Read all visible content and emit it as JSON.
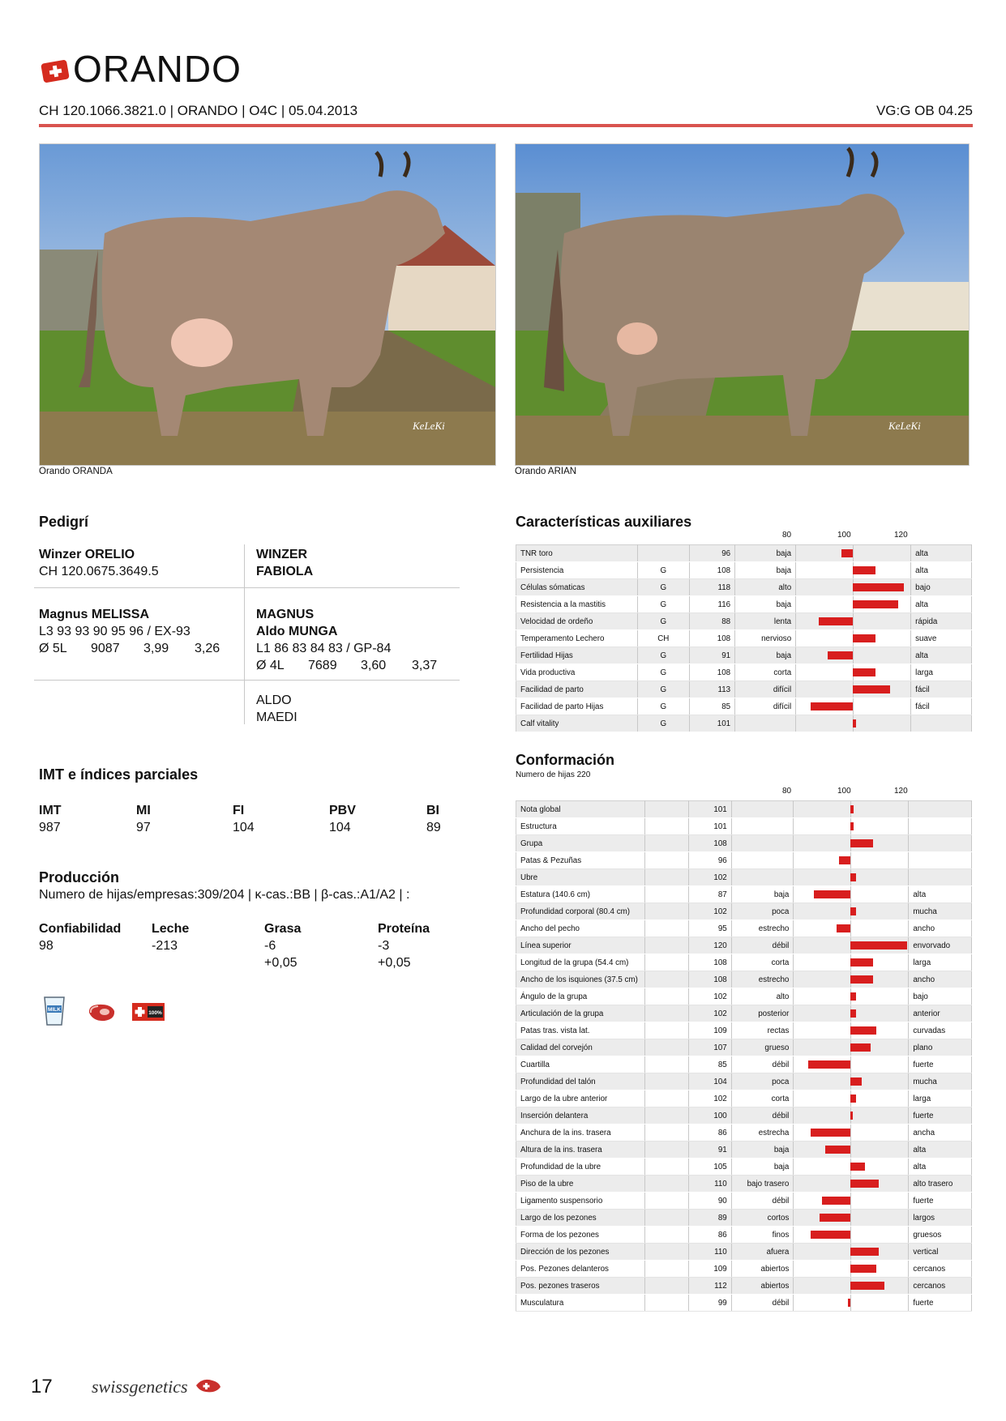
{
  "header": {
    "title": "ORANDO",
    "subline": "CH 120.1066.3821.0 | ORANDO | O4C | 05.04.2013",
    "vg": "VG:G OB 04.25"
  },
  "photos": {
    "left_caption": "Orando ORANDA",
    "right_caption": "Orando ARIAN",
    "watermark": "KeLeKi"
  },
  "pedigree": {
    "heading": "Pedigrí",
    "sire_name": "Winzer ORELIO",
    "sire_id": "CH 120.0675.3649.5",
    "sire_sire": "WINZER",
    "sire_dam": "FABIOLA",
    "dam_name": "Magnus MELISSA",
    "dam_line": "L3 93 93 90 95 96 / EX-93",
    "dam_perf": [
      "Ø 5L",
      "9087",
      "3,99",
      "3,26"
    ],
    "mgs_name": "MAGNUS",
    "mgd_name": "Aldo MUNGA",
    "mgd_line": "L1 86 83 84 83 / GP-84",
    "mgd_perf": [
      "Ø 4L",
      "7689",
      "3,60",
      "3,37"
    ],
    "mgd_sire": "ALDO",
    "mgd_dam": "MAEDI"
  },
  "imt": {
    "heading": "IMT e índices parciales",
    "labels": [
      "IMT",
      "MI",
      "FI",
      "PBV",
      "BI"
    ],
    "values": [
      "987",
      "97",
      "104",
      "104",
      "89"
    ]
  },
  "production": {
    "heading": "Producción",
    "line": "Numero de hijas/empresas:309/204 | κ-cas.:BB | β-cas.:A1/A2 | :",
    "labels": [
      "Confiabilidad",
      "Leche",
      "Grasa",
      "Proteína"
    ],
    "values": [
      "98",
      "-213",
      "-6",
      "-3"
    ],
    "extra": [
      "",
      "",
      "+0,05",
      "+0,05"
    ]
  },
  "icons": {
    "milk_label": "MILK",
    "swiss_label": "100%"
  },
  "aux": {
    "heading": "Características auxiliares",
    "scale": [
      "80",
      "100",
      "120"
    ],
    "rows": [
      {
        "name": "TNR toro",
        "src": "",
        "value": 96,
        "low": "baja",
        "high": "alta"
      },
      {
        "name": "Persistencia",
        "src": "G",
        "value": 108,
        "low": "baja",
        "high": "alta"
      },
      {
        "name": "Células sómaticas",
        "src": "G",
        "value": 118,
        "low": "alto",
        "high": "bajo"
      },
      {
        "name": "Resistencia a la mastitis",
        "src": "G",
        "value": 116,
        "low": "baja",
        "high": "alta"
      },
      {
        "name": "Velocidad de ordeño",
        "src": "G",
        "value": 88,
        "low": "lenta",
        "high": "rápida"
      },
      {
        "name": "Temperamento Lechero",
        "src": "CH",
        "value": 108,
        "low": "nervioso",
        "high": "suave"
      },
      {
        "name": "Fertilidad Hijas",
        "src": "G",
        "value": 91,
        "low": "baja",
        "high": "alta"
      },
      {
        "name": "Vida productiva",
        "src": "G",
        "value": 108,
        "low": "corta",
        "high": "larga"
      },
      {
        "name": "Facilidad de parto",
        "src": "G",
        "value": 113,
        "low": "difícil",
        "high": "fácil"
      },
      {
        "name": "Facilidad de parto Hijas",
        "src": "G",
        "value": 85,
        "low": "difícil",
        "high": "fácil"
      },
      {
        "name": "Calf vitality",
        "src": "G",
        "value": 101,
        "low": "",
        "high": ""
      }
    ]
  },
  "conf": {
    "heading": "Conformación",
    "subheading": "Numero de hijas 220",
    "scale": [
      "80",
      "100",
      "120"
    ],
    "rows": [
      {
        "name": "Nota global",
        "value": 101,
        "low": "",
        "high": ""
      },
      {
        "name": "Estructura",
        "value": 101,
        "low": "",
        "high": ""
      },
      {
        "name": "Grupa",
        "value": 108,
        "low": "",
        "high": ""
      },
      {
        "name": "Patas & Pezuñas",
        "value": 96,
        "low": "",
        "high": ""
      },
      {
        "name": "Ubre",
        "value": 102,
        "low": "",
        "high": ""
      },
      {
        "name": "Estatura (140.6 cm)",
        "value": 87,
        "low": "baja",
        "high": "alta"
      },
      {
        "name": "Profundidad corporal (80.4 cm)",
        "value": 102,
        "low": "poca",
        "high": "mucha"
      },
      {
        "name": "Ancho del pecho",
        "value": 95,
        "low": "estrecho",
        "high": "ancho"
      },
      {
        "name": "Línea superior",
        "value": 120,
        "low": "débil",
        "high": "envorvado"
      },
      {
        "name": "Longitud de la grupa (54.4 cm)",
        "value": 108,
        "low": "corta",
        "high": "larga"
      },
      {
        "name": "Ancho de los isquiones (37.5 cm)",
        "value": 108,
        "low": "estrecho",
        "high": "ancho"
      },
      {
        "name": "Ángulo de la grupa",
        "value": 102,
        "low": "alto",
        "high": "bajo"
      },
      {
        "name": "Articulación de la grupa",
        "value": 102,
        "low": "posterior",
        "high": "anterior"
      },
      {
        "name": "Patas tras. vista lat.",
        "value": 109,
        "low": "rectas",
        "high": "curvadas"
      },
      {
        "name": "Calidad del corvejón",
        "value": 107,
        "low": "grueso",
        "high": "plano"
      },
      {
        "name": "Cuartilla",
        "value": 85,
        "low": "débil",
        "high": "fuerte"
      },
      {
        "name": "Profundidad del talón",
        "value": 104,
        "low": "poca",
        "high": "mucha"
      },
      {
        "name": "Largo de la ubre anterior",
        "value": 102,
        "low": "corta",
        "high": "larga"
      },
      {
        "name": "Inserción delantera",
        "value": 100,
        "low": "débil",
        "high": "fuerte"
      },
      {
        "name": "Anchura de la ins. trasera",
        "value": 86,
        "low": "estrecha",
        "high": "ancha"
      },
      {
        "name": "Altura de la ins. trasera",
        "value": 91,
        "low": "baja",
        "high": "alta"
      },
      {
        "name": "Profundidad de la ubre",
        "value": 105,
        "low": "baja",
        "high": "alta"
      },
      {
        "name": "Piso de la ubre",
        "value": 110,
        "low": "bajo trasero",
        "high": "alto trasero"
      },
      {
        "name": "Ligamento suspensorio",
        "value": 90,
        "low": "débil",
        "high": "fuerte"
      },
      {
        "name": "Largo de los pezones",
        "value": 89,
        "low": "cortos",
        "high": "largos"
      },
      {
        "name": "Forma de los pezones",
        "value": 86,
        "low": "finos",
        "high": "gruesos"
      },
      {
        "name": "Dirección de los pezones",
        "value": 110,
        "low": "afuera",
        "high": "vertical"
      },
      {
        "name": "Pos. Pezones delanteros",
        "value": 109,
        "low": "abiertos",
        "high": "cercanos"
      },
      {
        "name": "Pos. pezones traseros",
        "value": 112,
        "low": "abiertos",
        "high": "cercanos"
      },
      {
        "name": "Musculatura",
        "value": 99,
        "low": "débil",
        "high": "fuerte"
      }
    ]
  },
  "footer": {
    "page": "17",
    "brand": "swissgenetics"
  },
  "colors": {
    "accent_line": "#d9534f",
    "bar": "#d81e1e",
    "swiss_red": "#d52b1e"
  }
}
